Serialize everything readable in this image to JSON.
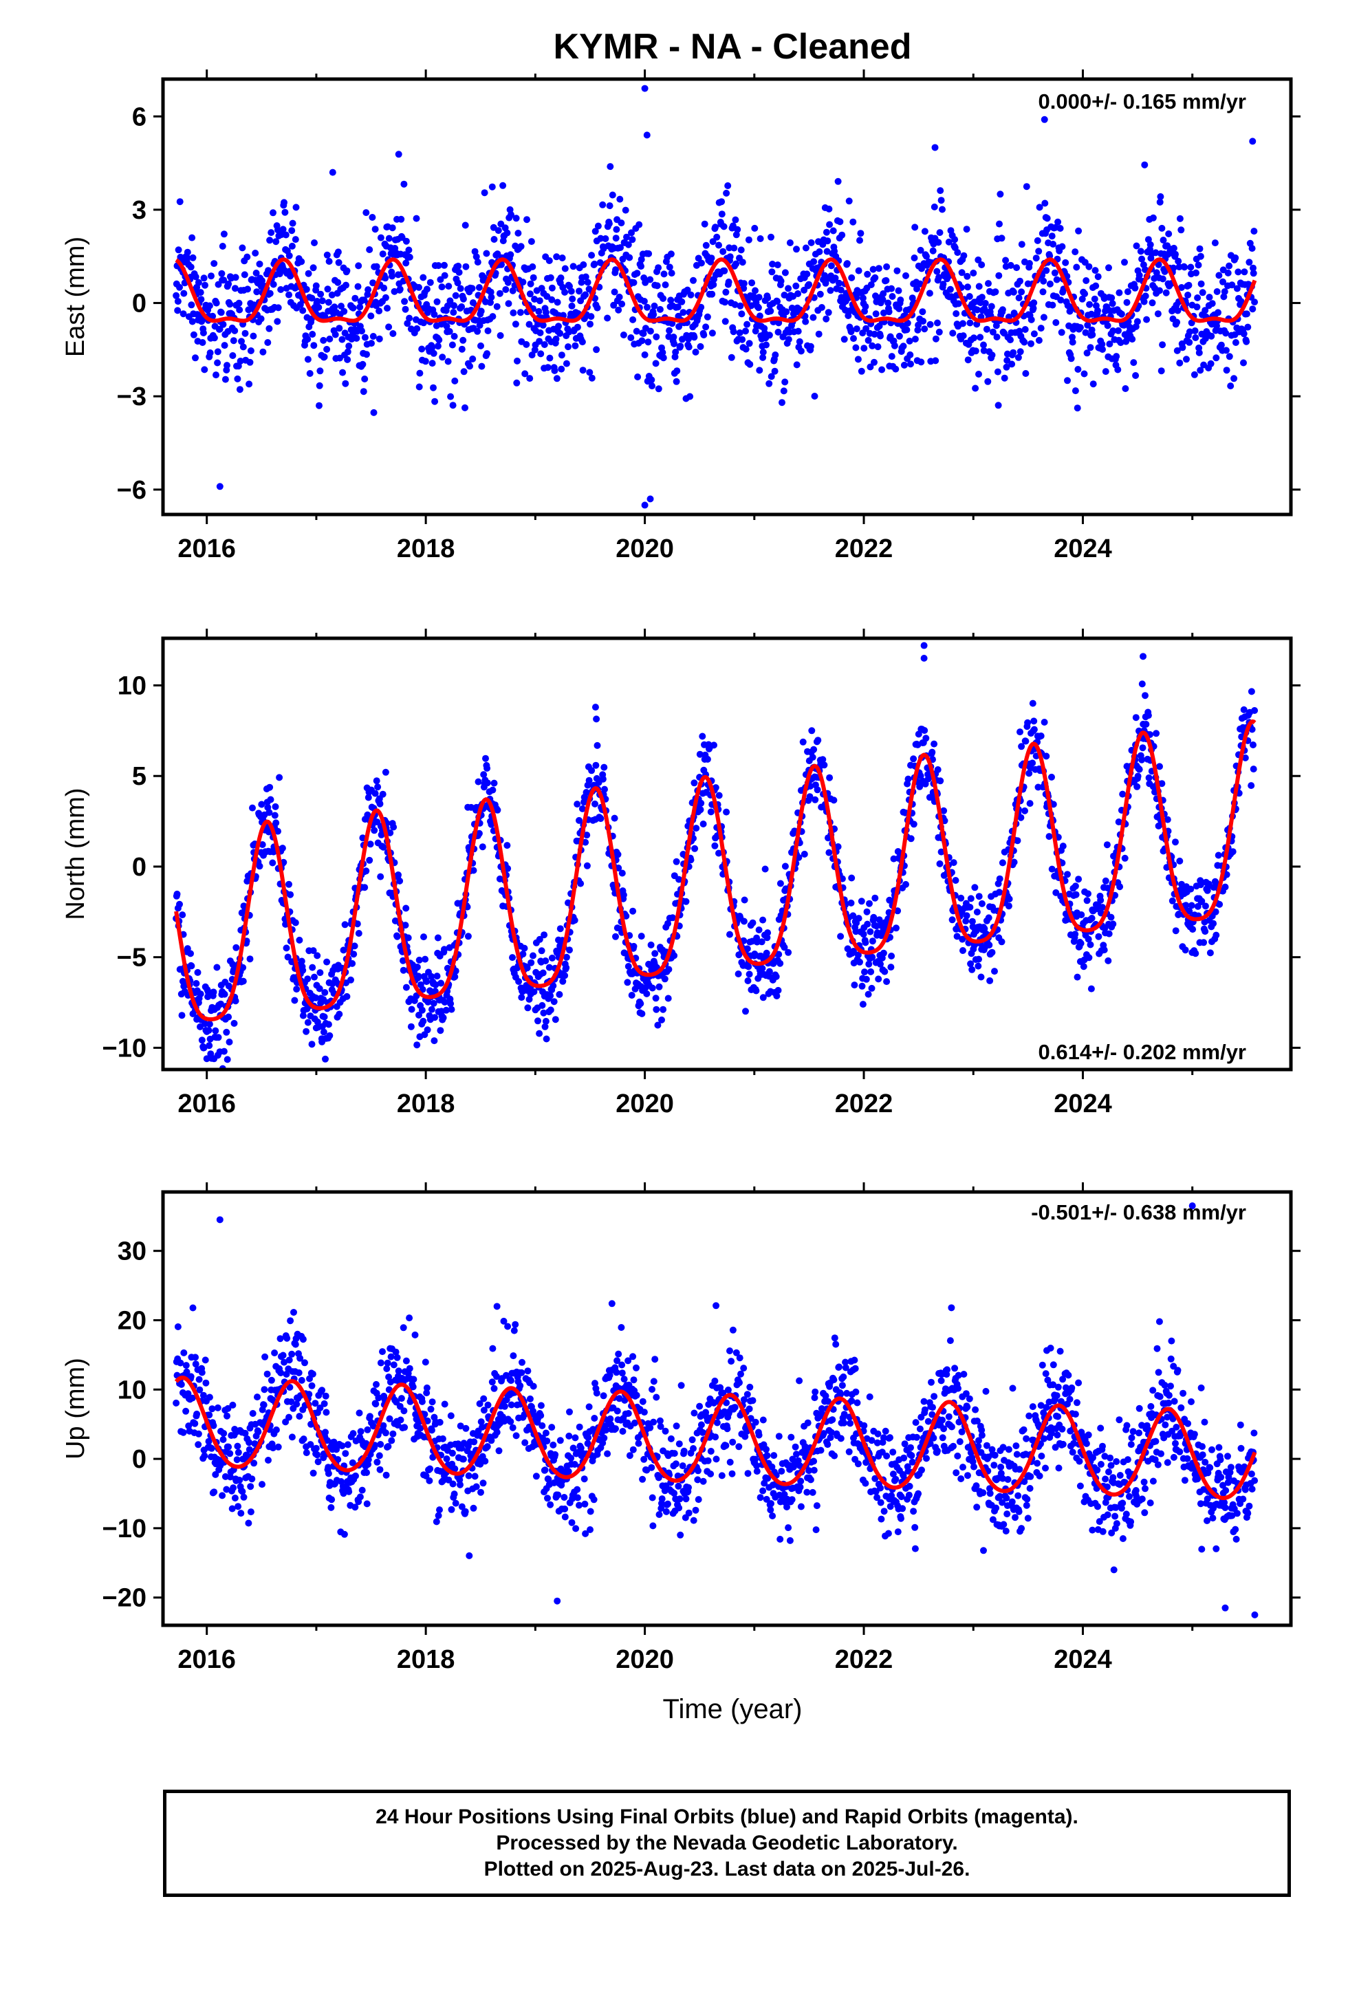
{
  "title": "KYMR  - NA - Cleaned",
  "xlabel": "Time (year)",
  "footer": {
    "line1": "24 Hour Positions Using Final Orbits (blue) and Rapid Orbits (magenta).",
    "line2": "Processed by the Nevada Geodetic Laboratory.",
    "line3": "Plotted on 2025-Aug-23. Last data on 2025-Jul-26."
  },
  "colors": {
    "points": "#0000ff",
    "fit": "#ff0000",
    "axes": "#000000"
  },
  "chart_data": [
    {
      "type": "scatter",
      "ylabel": "East (mm)",
      "rate": "0.000+/- 0.165 mm/yr",
      "xlim": [
        2015.6,
        2025.9
      ],
      "ylim": [
        -6.8,
        7.2
      ],
      "x_ticks": [
        2016,
        2018,
        2020,
        2022,
        2024
      ],
      "y_ticks": [
        -6,
        -3,
        0,
        3,
        6
      ],
      "data_start": 2015.72,
      "data_end": 2025.57,
      "fit": {
        "offset": 0.1,
        "trend_mm_per_yr": 0.0,
        "annual_amp": 0.95,
        "annual_phase_yr": 0.7,
        "semiannual_amp": 0.35,
        "semiannual_phase_yr": 0.7
      },
      "scatter_sigma": 1.05,
      "outliers": [
        [
          2020.0,
          6.9
        ],
        [
          2020.02,
          5.4
        ],
        [
          2023.65,
          5.9
        ],
        [
          2020.0,
          -6.5
        ],
        [
          2020.05,
          -6.3
        ],
        [
          2016.12,
          -5.9
        ],
        [
          2017.15,
          4.2
        ],
        [
          2022.65,
          5.0
        ],
        [
          2025.55,
          5.2
        ]
      ]
    },
    {
      "type": "scatter",
      "ylabel": "North (mm)",
      "rate": "0.614+/- 0.202 mm/yr",
      "xlim": [
        2015.6,
        2025.9
      ],
      "ylim": [
        -11.2,
        12.6
      ],
      "x_ticks": [
        2016,
        2018,
        2020,
        2022,
        2024
      ],
      "y_ticks": [
        -10,
        -5,
        0,
        5,
        10
      ],
      "data_start": 2015.72,
      "data_end": 2025.57,
      "fit": {
        "offset": -1.8,
        "trend_mm_per_yr": 0.614,
        "annual_amp": 5.3,
        "annual_phase_yr": 0.55,
        "semiannual_amp": 1.1,
        "semiannual_phase_yr": 0.55
      },
      "scatter_sigma": 1.2,
      "outliers": [
        [
          2022.55,
          12.2
        ],
        [
          2016.0,
          -10.6
        ],
        [
          2022.55,
          11.5
        ],
        [
          2024.55,
          11.6
        ],
        [
          2019.55,
          8.8
        ],
        [
          2023.15,
          -6.3
        ],
        [
          2023.95,
          -6.1
        ],
        [
          2017.05,
          -9.5
        ]
      ]
    },
    {
      "type": "scatter",
      "ylabel": "Up (mm)",
      "rate": "-0.501+/- 0.638 mm/yr",
      "xlim": [
        2015.6,
        2025.9
      ],
      "ylim": [
        -24,
        38.5
      ],
      "x_ticks": [
        2016,
        2018,
        2020,
        2022,
        2024
      ],
      "y_ticks": [
        -20,
        -10,
        0,
        10,
        20,
        30
      ],
      "data_start": 2015.72,
      "data_end": 2025.57,
      "fit": {
        "offset": 2.7,
        "trend_mm_per_yr": -0.501,
        "annual_amp": 6.3,
        "annual_phase_yr": 0.78,
        "semiannual_amp": 0.6,
        "semiannual_phase_yr": 0.78
      },
      "scatter_sigma": 3.8,
      "outliers": [
        [
          2016.12,
          34.5
        ],
        [
          2025.0,
          36.5
        ],
        [
          2018.65,
          22.0
        ],
        [
          2019.7,
          22.4
        ],
        [
          2020.65,
          22.1
        ],
        [
          2022.8,
          21.8
        ],
        [
          2024.7,
          19.8
        ],
        [
          2019.2,
          -20.5
        ],
        [
          2025.57,
          -22.5
        ],
        [
          2025.3,
          -21.5
        ]
      ]
    }
  ]
}
